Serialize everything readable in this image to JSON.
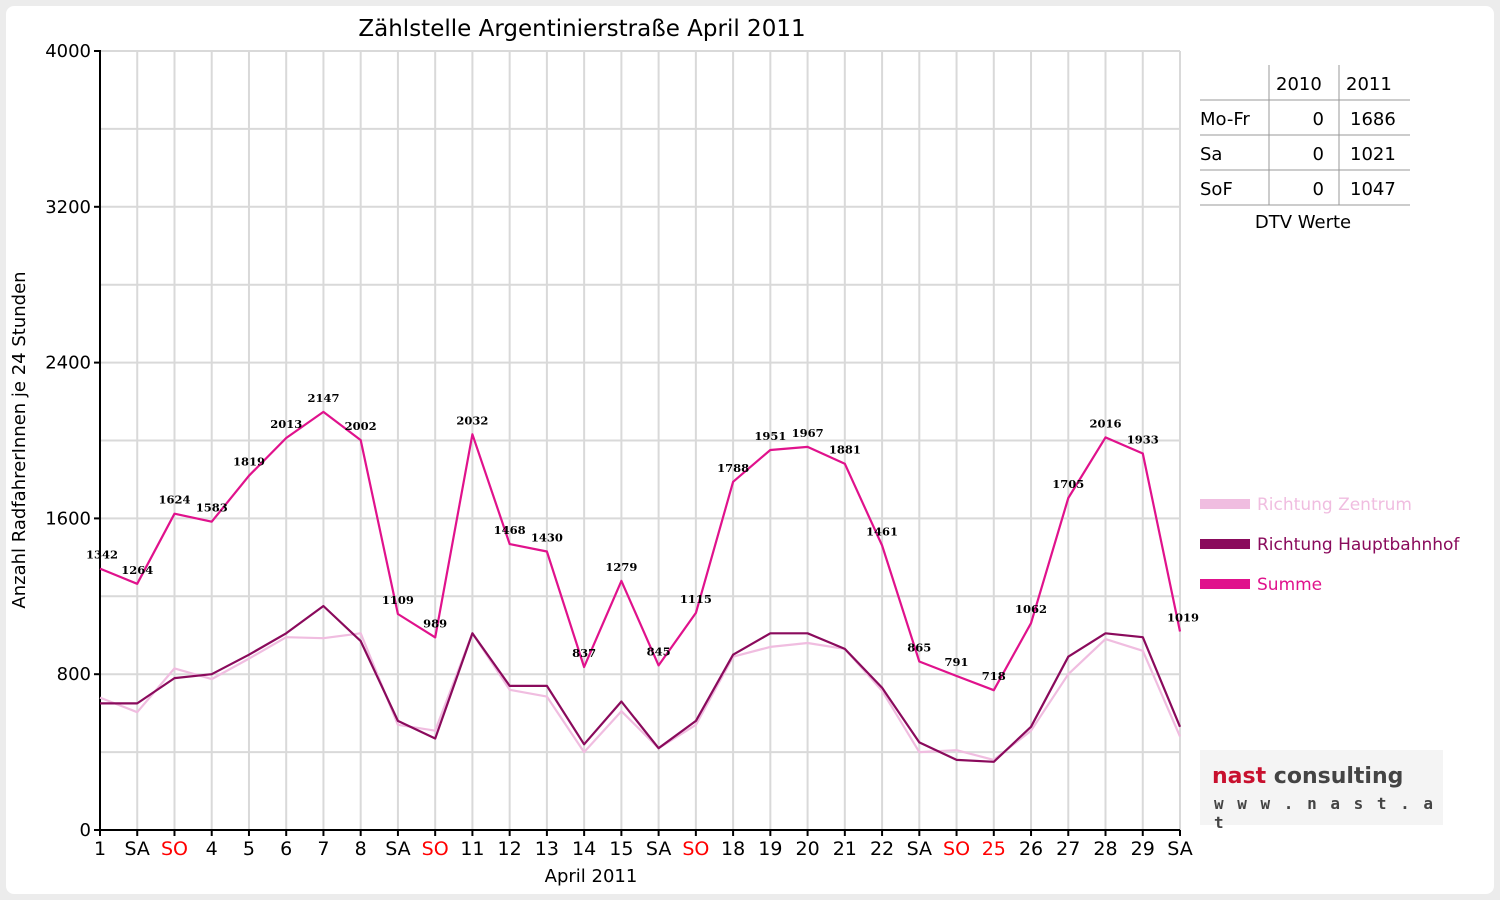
{
  "chart_data": {
    "type": "line",
    "title": "Zählstelle Argentinierstraße April 2011",
    "xlabel": "April 2011",
    "ylabel": "Anzahl RadfahrerInnen je 24 Stunden",
    "ylim": [
      0,
      4000
    ],
    "yticks": [
      "0",
      "800",
      "1600",
      "2400",
      "3200",
      "4000"
    ],
    "grid": true,
    "legend_position": "right",
    "categories": [
      "1",
      "SA",
      "SO",
      "4",
      "5",
      "6",
      "7",
      "8",
      "SA",
      "SO",
      "11",
      "12",
      "13",
      "14",
      "15",
      "SA",
      "SO",
      "18",
      "19",
      "20",
      "21",
      "22",
      "SA",
      "SO",
      "25",
      "26",
      "27",
      "28",
      "29",
      "SA"
    ],
    "highlighted_categories": [
      2,
      9,
      16,
      23,
      24
    ],
    "series": [
      {
        "name": "Richtung Zentrum",
        "color": "#f0bde0",
        "values": [
          680,
          605,
          830,
          775,
          880,
          990,
          985,
          1010,
          540,
          510,
          1010,
          720,
          685,
          400,
          610,
          420,
          540,
          890,
          940,
          960,
          930,
          715,
          400,
          410,
          360,
          510,
          800,
          980,
          920,
          480
        ]
      },
      {
        "name": "Richtung Hauptbahnhof",
        "color": "#8a0a5c",
        "values": [
          650,
          650,
          780,
          800,
          900,
          1010,
          1150,
          970,
          560,
          470,
          1010,
          740,
          740,
          440,
          660,
          420,
          560,
          900,
          1010,
          1010,
          930,
          730,
          450,
          360,
          350,
          530,
          890,
          1010,
          990,
          530
        ]
      },
      {
        "name": "Summe",
        "color": "#e0128c",
        "values": [
          1342,
          1264,
          1624,
          1583,
          1819,
          2013,
          2147,
          2002,
          1109,
          989,
          2032,
          1468,
          1430,
          837,
          1279,
          845,
          1115,
          1788,
          1951,
          1967,
          1881,
          1461,
          865,
          791,
          718,
          1062,
          1705,
          2016,
          1933,
          1019
        ]
      }
    ],
    "data_labels": [
      "1342",
      "1264",
      "1624",
      "1583",
      "1819",
      "2013",
      "2147",
      "2002",
      "1109",
      "989",
      "2032",
      "1468",
      "1430",
      "837",
      "1279",
      "845",
      "1115",
      "1788",
      "1951",
      "1967",
      "1881",
      "1461",
      "865",
      "791",
      "718",
      "1062",
      "1705",
      "2016",
      "1933",
      "1019"
    ]
  },
  "summary_table": {
    "caption": "DTV Werte",
    "columns": [
      "2010",
      "2011"
    ],
    "rows": [
      {
        "label": "Mo-Fr",
        "v2010": "0",
        "v2011": "1686"
      },
      {
        "label": "Sa",
        "v2010": "0",
        "v2011": "1021"
      },
      {
        "label": "SoF",
        "v2010": "0",
        "v2011": "1047"
      }
    ]
  },
  "logo": {
    "brand_a": "nast",
    "brand_b": "consulting",
    "url": "w w w . n a s t . a t"
  },
  "colors": {
    "weekend_label": "#ff0000",
    "weekday_label": "#000000",
    "grid": "#d9d9d9"
  }
}
